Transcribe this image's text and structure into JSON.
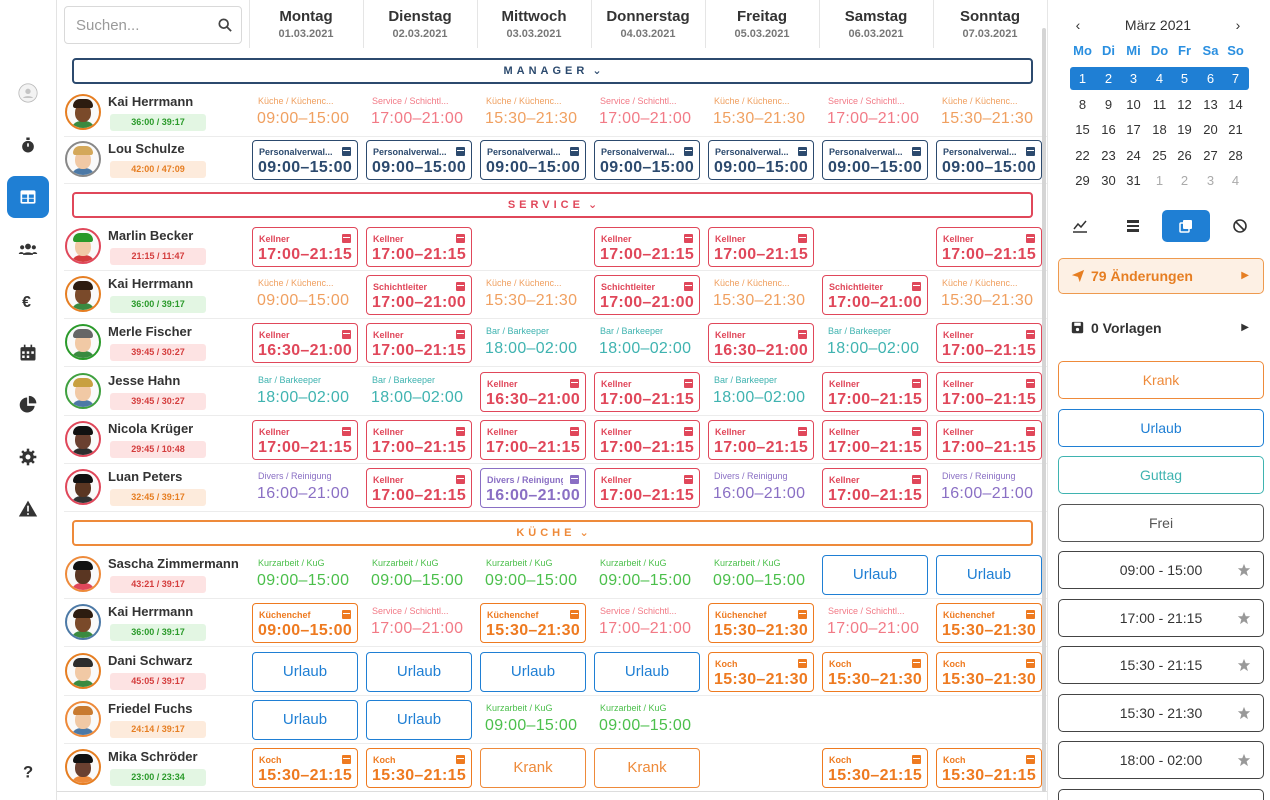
{
  "nav": {
    "items": [
      "avatar-user",
      "stopwatch",
      "schedule",
      "team",
      "finance",
      "calendar",
      "reports",
      "settings",
      "warnings",
      "help"
    ]
  },
  "search": {
    "placeholder": "Suchen..."
  },
  "days": [
    {
      "name": "Montag",
      "date": "01.03.2021"
    },
    {
      "name": "Dienstag",
      "date": "02.03.2021"
    },
    {
      "name": "Mittwoch",
      "date": "03.03.2021"
    },
    {
      "name": "Donnerstag",
      "date": "04.03.2021"
    },
    {
      "name": "Freitag",
      "date": "05.03.2021"
    },
    {
      "name": "Samstag",
      "date": "06.03.2021"
    },
    {
      "name": "Sonntag",
      "date": "07.03.2021"
    }
  ],
  "sections": {
    "manager": {
      "label": "MANAGER",
      "color": "#2c4a6e"
    },
    "service": {
      "label": "SERVICE",
      "color": "#e0475a"
    },
    "kueche": {
      "label": "KÜCHE",
      "color": "#ee8a3a"
    }
  },
  "colors": {
    "kuechen_light": "#f0a060",
    "service_light": "#f27a86",
    "personal": "#2c4a6e",
    "kellner": "#e0475a",
    "bar": "#3fb3b0",
    "divers": "#8a6fc4",
    "kurzarbeit": "#4bbf4b",
    "urlaub": "#1f7fd4",
    "krank": "#ee8a3a",
    "kueche": "#ee7a20"
  },
  "employees": {
    "kai1": {
      "name": "Kai Herrmann",
      "hours": "36:00 / 39:17"
    },
    "lou": {
      "name": "Lou Schulze",
      "hours": "42:00 / 47:09"
    },
    "marlin": {
      "name": "Marlin Becker",
      "hours": "21:15 / 11:47"
    },
    "kai2": {
      "name": "Kai Herrmann",
      "hours": "36:00 / 39:17"
    },
    "merle": {
      "name": "Merle Fischer",
      "hours": "39:45 / 30:27"
    },
    "jesse": {
      "name": "Jesse Hahn",
      "hours": "39:45 / 30:27"
    },
    "nicola": {
      "name": "Nicola Krüger",
      "hours": "29:45 / 10:48"
    },
    "luan": {
      "name": "Luan Peters",
      "hours": "32:45 / 39:17"
    },
    "sascha": {
      "name": "Sascha Zimmermann",
      "hours": "43:21 / 39:17"
    },
    "kai3": {
      "name": "Kai Herrmann",
      "hours": "36:00 / 39:17"
    },
    "dani": {
      "name": "Dani Schwarz",
      "hours": "45:05 / 39:17"
    },
    "friedel": {
      "name": "Friedel Fuchs",
      "hours": "24:14 / 39:17"
    },
    "mika": {
      "name": "Mika Schröder",
      "hours": "23:00 / 23:34"
    }
  },
  "labels": {
    "kueche_kuechenchef": "Küche / Küchenc...",
    "service_schicht": "Service / Schichtl...",
    "personal": "Personalverwal...",
    "kellner": "Kellner",
    "schichtleiter": "Schichtleiter",
    "bar": "Bar / Barkeeper",
    "divers": "Divers / Reinigung",
    "kurzarbeit": "Kurzarbeit / KuG",
    "kuechenchef": "Küchenchef",
    "service_schicht2": "Service / Schichtl...",
    "koch": "Koch",
    "urlaub": "Urlaub",
    "krank": "Krank"
  },
  "times": {
    "t0915": "09:00 - 15:00",
    "t1721": "17:00 - 21:00",
    "t1530": "15:30 - 21:30",
    "t1715": "17:00 - 21:15",
    "t1630": "16:30 - 21:00",
    "t1802": "18:00 - 02:00",
    "t1621": "16:00 - 21:00",
    "t1515": "15:30 - 21:15"
  },
  "right": {
    "month": "März 2021",
    "weekdays": [
      "Mo",
      "Di",
      "Mi",
      "Do",
      "Fr",
      "Sa",
      "So"
    ],
    "weeks": [
      [
        "1",
        "2",
        "3",
        "4",
        "5",
        "6",
        "7"
      ],
      [
        "8",
        "9",
        "10",
        "11",
        "12",
        "13",
        "14"
      ],
      [
        "15",
        "16",
        "17",
        "18",
        "19",
        "20",
        "21"
      ],
      [
        "22",
        "23",
        "24",
        "25",
        "26",
        "27",
        "28"
      ],
      [
        "29",
        "30",
        "31",
        "1",
        "2",
        "3",
        "4"
      ]
    ],
    "changes": "79 Änderungen",
    "templates": "0 Vorlagen",
    "tags": [
      "Krank",
      "Urlaub",
      "Guttag",
      "Frei"
    ],
    "quick_times": [
      "09:00 - 15:00",
      "17:00 - 21:15",
      "15:30 - 21:15",
      "15:30 - 21:30",
      "18:00 - 02:00"
    ]
  }
}
